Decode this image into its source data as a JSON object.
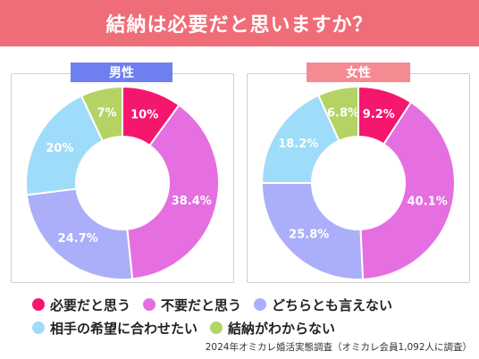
{
  "banner": {
    "title": "結納は必要だと思いますか？"
  },
  "panels": [
    {
      "label": "男性"
    },
    {
      "label": "女性"
    }
  ],
  "colors": {
    "banner": "#ef6d78",
    "male_label": "#6e7ff0",
    "female_label": "#f48a92"
  },
  "legend": [
    {
      "label": "必要だと思う",
      "color": "#f5166e",
      "icon": "dot"
    },
    {
      "label": "不要だと思う",
      "color": "#e56fe0",
      "icon": "dot"
    },
    {
      "label": "どちらとも言えない",
      "color": "#abaff9",
      "icon": "dot"
    },
    {
      "label": "相手の希望に合わせたい",
      "color": "#9fdcf9",
      "icon": "dot"
    },
    {
      "label": "結納がわからない",
      "color": "#b4d365",
      "icon": "dot"
    }
  ],
  "source": "2024年オミカレ婚活実態調査（オミカレ会員1,092人に調査）",
  "chart_data": [
    {
      "type": "pie",
      "title": "男性",
      "categories": [
        "必要だと思う",
        "不要だと思う",
        "どちらとも言えない",
        "相手の希望に合わせたい",
        "結納がわからない"
      ],
      "values": [
        10,
        38.4,
        24.7,
        20,
        7
      ],
      "labels": [
        "10%",
        "38.4%",
        "24.7%",
        "20%",
        "7%"
      ],
      "colors": [
        "#f5166e",
        "#e56fe0",
        "#abaff9",
        "#9fdcf9",
        "#b4d365"
      ],
      "donut": true,
      "start": "top",
      "direction": "clockwise"
    },
    {
      "type": "pie",
      "title": "女性",
      "categories": [
        "必要だと思う",
        "不要だと思う",
        "どちらとも言えない",
        "相手の希望に合わせたい",
        "結納がわからない"
      ],
      "values": [
        9.2,
        40.1,
        25.8,
        18.2,
        6.8
      ],
      "labels": [
        "9.2%",
        "40.1%",
        "25.8%",
        "18.2%",
        "6.8%"
      ],
      "colors": [
        "#f5166e",
        "#e56fe0",
        "#abaff9",
        "#9fdcf9",
        "#b4d365"
      ],
      "donut": true,
      "start": "top",
      "direction": "clockwise"
    }
  ]
}
